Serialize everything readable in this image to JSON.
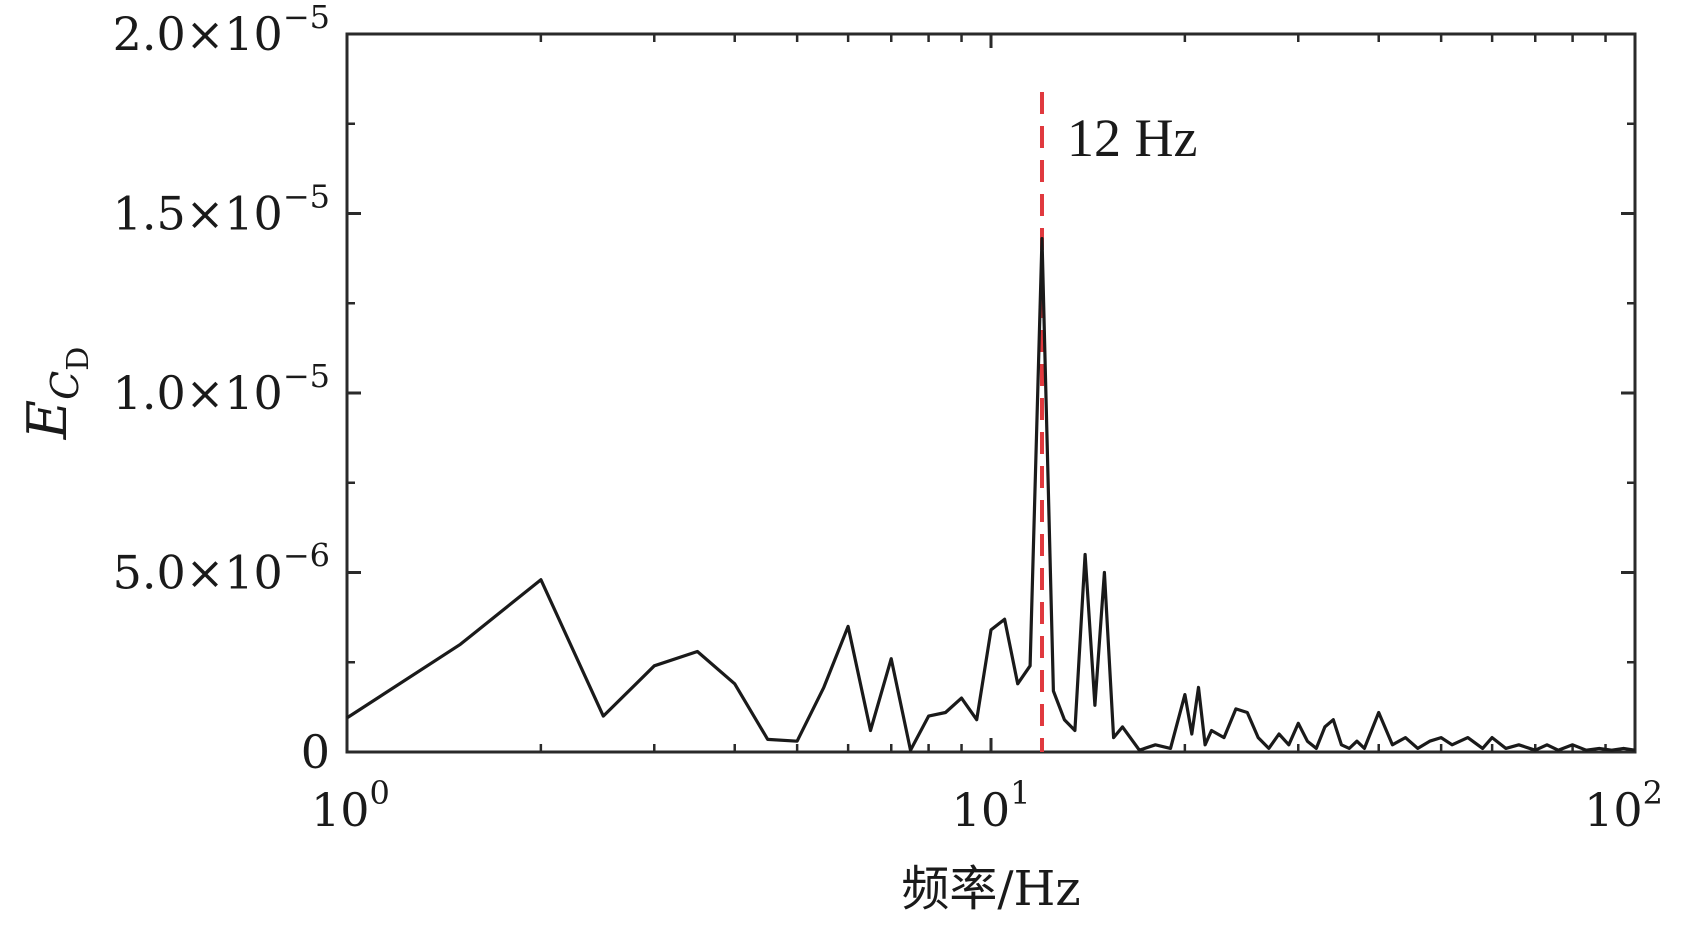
{
  "chart_data": {
    "type": "line",
    "x_scale": "log",
    "xlim": [
      1,
      100
    ],
    "ylim": [
      0,
      2e-05
    ],
    "grid": false,
    "xlabel": "频率/Hz",
    "ylabel": {
      "main": "E",
      "sub": "C",
      "subsub": "D"
    },
    "x_ticks": [
      {
        "value": 1,
        "base": "10",
        "exp": "0"
      },
      {
        "value": 10,
        "base": "10",
        "exp": "1"
      },
      {
        "value": 100,
        "base": "10",
        "exp": "2"
      }
    ],
    "y_ticks": [
      {
        "value": 0,
        "mantissa": "0",
        "exp": ""
      },
      {
        "value": 5e-06,
        "mantissa": "5.0×10",
        "exp": "−6"
      },
      {
        "value": 1e-05,
        "mantissa": "1.0×10",
        "exp": "−5"
      },
      {
        "value": 1.5e-05,
        "mantissa": "1.5×10",
        "exp": "−5"
      },
      {
        "value": 2e-05,
        "mantissa": "2.0×10",
        "exp": "−5"
      }
    ],
    "annotations": [
      {
        "x": 12,
        "text": "12 Hz",
        "color": "#e0393e",
        "style": "dashed"
      }
    ],
    "series": [
      {
        "color": "#1a1a1a",
        "x": [
          1.0,
          1.5,
          2.0,
          2.5,
          3.0,
          3.5,
          4.0,
          4.5,
          5.0,
          5.5,
          6.0,
          6.5,
          7.0,
          7.5,
          8.0,
          8.5,
          9.0,
          9.5,
          10.0,
          10.5,
          11.0,
          11.5,
          12.0,
          12.5,
          13.0,
          13.5,
          14.0,
          14.5,
          15.0,
          15.5,
          16.0,
          17.0,
          18.0,
          19.0,
          20.0,
          20.5,
          21.0,
          21.5,
          22.0,
          23.0,
          24.0,
          25.0,
          26.0,
          27.0,
          28.0,
          29.0,
          30.0,
          31.0,
          32.0,
          33.0,
          34.0,
          35.0,
          36.0,
          37.0,
          38.0,
          40.0,
          42.0,
          44.0,
          46.0,
          48.0,
          50.0,
          52.0,
          55.0,
          58.0,
          60.0,
          63.0,
          66.0,
          70.0,
          73.0,
          76.0,
          80.0,
          84.0,
          88.0,
          92.0,
          96.0,
          100.0
        ],
        "y": [
          9.5e-07,
          3e-06,
          4.8e-06,
          1e-06,
          2.4e-06,
          2.8e-06,
          1.9e-06,
          3.5e-07,
          3e-07,
          1.8e-06,
          3.5e-06,
          6e-07,
          2.6e-06,
          5e-08,
          1e-06,
          1.1e-06,
          1.5e-06,
          9e-07,
          3.4e-06,
          3.7e-06,
          1.9e-06,
          2.4e-06,
          1.43e-05,
          1.7e-06,
          9e-07,
          6e-07,
          5.5e-06,
          1.3e-06,
          5e-06,
          4e-07,
          7e-07,
          5e-08,
          2e-07,
          1e-07,
          1.6e-06,
          5e-07,
          1.8e-06,
          2e-07,
          6e-07,
          4e-07,
          1.2e-06,
          1.1e-06,
          4e-07,
          1e-07,
          5e-07,
          2e-07,
          8e-07,
          3e-07,
          1e-07,
          7e-07,
          9e-07,
          2e-07,
          1e-07,
          3e-07,
          1e-07,
          1.1e-06,
          2e-07,
          4e-07,
          1e-07,
          3e-07,
          4e-07,
          2e-07,
          4e-07,
          1e-07,
          4e-07,
          1e-07,
          2e-07,
          5e-08,
          2e-07,
          5e-08,
          2e-07,
          5e-08,
          1e-07,
          5e-08,
          1e-07,
          5e-08
        ]
      }
    ]
  }
}
